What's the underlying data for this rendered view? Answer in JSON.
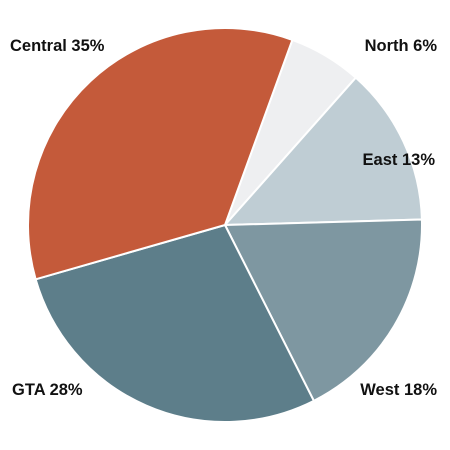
{
  "chart_data": {
    "type": "pie",
    "title": "",
    "slices": [
      {
        "label": "North",
        "value": 6,
        "color": "#EEEFF1"
      },
      {
        "label": "East",
        "value": 13,
        "color": "#BFCDD4"
      },
      {
        "label": "West",
        "value": 18,
        "color": "#7E97A1"
      },
      {
        "label": "GTA",
        "value": 28,
        "color": "#5D7E8A"
      },
      {
        "label": "Central",
        "value": 35,
        "color": "#C45A3A"
      }
    ],
    "labels": {
      "north": "North 6%",
      "east": "East 13%",
      "west": "West 18%",
      "gta": "GTA 28%",
      "central": "Central 35%"
    },
    "slice_border_color": "#FFFFFF",
    "legend": "none"
  }
}
